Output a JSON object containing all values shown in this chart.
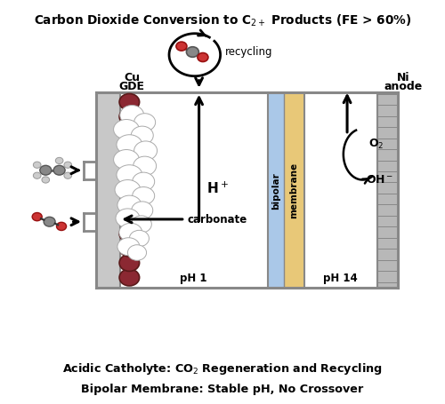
{
  "title": "Carbon Dioxide Conversion to C$_{2+}$ Products (FE > 60%)",
  "bottom_line1": "Acidic Catholyte: CO$_2$ Regeneration and Recycling",
  "bottom_line2": "Bipolar Membrane: Stable pH, No Crossover",
  "bg_color": "#ffffff",
  "box_color": "#888888",
  "gde_color": "#c8c8c8",
  "catholyte_color": "#f5f5f5",
  "bipolar_blue_color": "#aac8e8",
  "bipolar_yellow_color": "#e8c878",
  "ni_color": "#b0b0b0",
  "bead_color": "#8B2832",
  "bead_edge_color": "#5a1a1a",
  "co2_red_color": "#cc3333",
  "co2_gray_color": "#888888",
  "white": "#ffffff",
  "black": "#000000"
}
